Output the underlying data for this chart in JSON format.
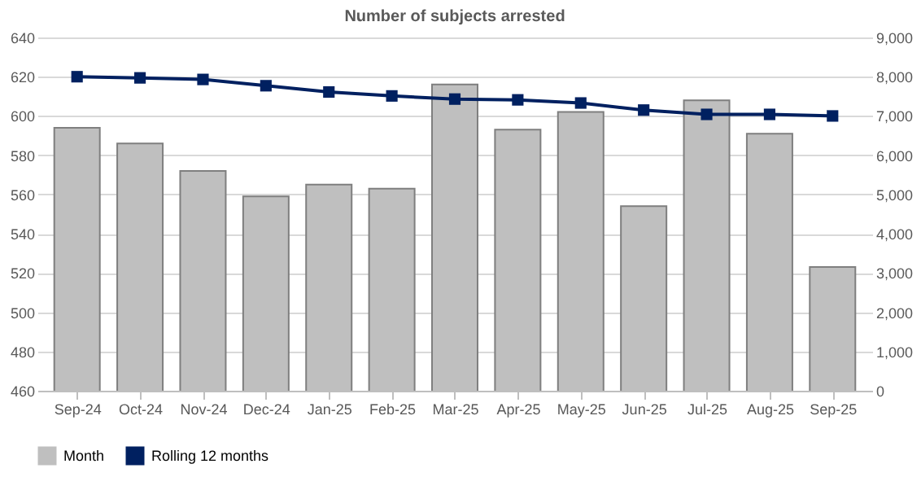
{
  "chart_data": {
    "type": "bar",
    "title": "Number of subjects arrested",
    "categories": [
      "Sep-24",
      "Oct-24",
      "Nov-24",
      "Dec-24",
      "Jan-25",
      "Feb-25",
      "Mar-25",
      "Apr-25",
      "May-25",
      "Jun-25",
      "Jul-25",
      "Aug-25",
      "Sep-25"
    ],
    "series": [
      {
        "name": "Month",
        "color": "#bfbfbf",
        "values": [
          594,
          586,
          572,
          559,
          565,
          563,
          616,
          593,
          602,
          554,
          608,
          591,
          523
        ]
      },
      {
        "name": "Rolling 12 months",
        "type": "line",
        "axis": "y2",
        "color": "#002060",
        "marker": "square",
        "values": [
          8000,
          7970,
          7930,
          7770,
          7610,
          7510,
          7430,
          7410,
          7330,
          7150,
          7040,
          7040,
          7000
        ]
      }
    ],
    "ylim": [
      460,
      640
    ],
    "yticks": [
      460,
      480,
      500,
      520,
      540,
      560,
      580,
      600,
      620,
      640
    ],
    "y2lim": [
      0,
      9000
    ],
    "y2ticks": [
      {
        "value": 0,
        "label": "0"
      },
      {
        "value": 1000,
        "label": "1,000"
      },
      {
        "value": 2000,
        "label": "2,000"
      },
      {
        "value": 3000,
        "label": "3,000"
      },
      {
        "value": 4000,
        "label": "4,000"
      },
      {
        "value": 5000,
        "label": "5,000"
      },
      {
        "value": 6000,
        "label": "6,000"
      },
      {
        "value": 7000,
        "label": "7,000"
      },
      {
        "value": 8000,
        "label": "8,000"
      },
      {
        "value": 9000,
        "label": "9,000"
      }
    ],
    "grid": "y",
    "legend": "bottom"
  }
}
